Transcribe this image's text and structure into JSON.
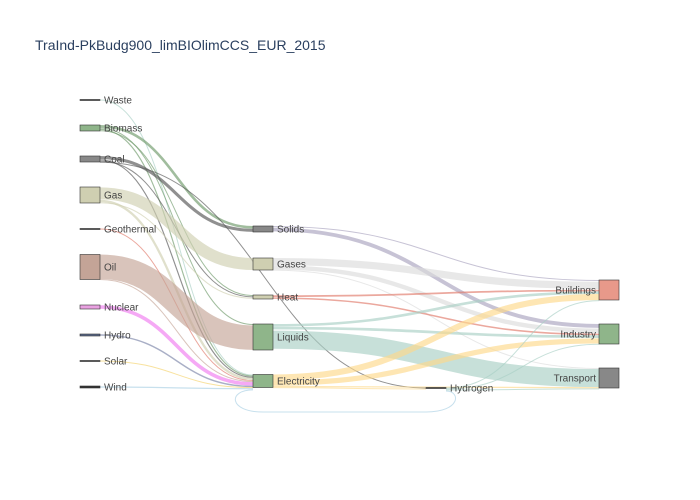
{
  "chart_data": {
    "type": "sankey",
    "title": "TraInd-PkBudg900_limBIOlimCCS_EUR_2015",
    "nodes": [
      {
        "id": "waste",
        "label": "Waste",
        "column": 0,
        "value": 0.4,
        "color": "#333333"
      },
      {
        "id": "biomass",
        "label": "Biomass",
        "column": 0,
        "value": 3,
        "color": "#8fb58a"
      },
      {
        "id": "coal",
        "label": "Coal",
        "column": 0,
        "value": 3,
        "color": "#888888"
      },
      {
        "id": "gas",
        "label": "Gas",
        "column": 0,
        "value": 10,
        "color": "#cfcfb1"
      },
      {
        "id": "geothermal",
        "label": "Geothermal",
        "column": 0,
        "value": 0.3,
        "color": "#333333"
      },
      {
        "id": "oil",
        "label": "Oil",
        "column": 0,
        "value": 15,
        "color": "#c4a497"
      },
      {
        "id": "nuclear",
        "label": "Nuclear",
        "column": 0,
        "value": 2.5,
        "color": "#e9a1e1"
      },
      {
        "id": "hydro",
        "label": "Hydro",
        "column": 0,
        "value": 1,
        "color": "#5a6a8a"
      },
      {
        "id": "solar",
        "label": "Solar",
        "column": 0,
        "value": 0.3,
        "color": "#333333"
      },
      {
        "id": "wind",
        "label": "Wind",
        "column": 0,
        "value": 0.8,
        "color": "#333333"
      },
      {
        "id": "solids",
        "label": "Solids",
        "column": 1,
        "value": 3,
        "color": "#888888"
      },
      {
        "id": "gases",
        "label": "Gases",
        "column": 1,
        "value": 8,
        "color": "#cfcfb1"
      },
      {
        "id": "heat",
        "label": "Heat",
        "column": 1,
        "value": 2,
        "color": "#cfcfb1"
      },
      {
        "id": "liquids",
        "label": "Liquids",
        "column": 1,
        "value": 15,
        "color": "#8fb58a"
      },
      {
        "id": "electricity",
        "label": "Electricity",
        "column": 1,
        "value": 8,
        "color": "#8fb58a"
      },
      {
        "id": "hydrogen",
        "label": "Hydrogen",
        "column": 2,
        "value": 0.3,
        "color": "#333333"
      },
      {
        "id": "buildings",
        "label": "Buildings",
        "column": 3,
        "value": 13,
        "color": "#e8998a"
      },
      {
        "id": "industry",
        "label": "Industry",
        "column": 3,
        "value": 13,
        "color": "#8fb58a"
      },
      {
        "id": "transport",
        "label": "Transport",
        "column": 3,
        "value": 13,
        "color": "#888888"
      }
    ],
    "links": [
      {
        "source": "waste",
        "target": "electricity",
        "value": 0.4,
        "color": "#a9d0c4"
      },
      {
        "source": "biomass",
        "target": "solids",
        "value": 1.2,
        "color": "#6f9a6a"
      },
      {
        "source": "biomass",
        "target": "liquids",
        "value": 0.4,
        "color": "#6f9a6a"
      },
      {
        "source": "biomass",
        "target": "electricity",
        "value": 0.8,
        "color": "#6f9a6a"
      },
      {
        "source": "biomass",
        "target": "heat",
        "value": 0.4,
        "color": "#6f9a6a"
      },
      {
        "source": "coal",
        "target": "solids",
        "value": 1.5,
        "color": "#555555"
      },
      {
        "source": "coal",
        "target": "electricity",
        "value": 0.8,
        "color": "#555555"
      },
      {
        "source": "coal",
        "target": "heat",
        "value": 0.4,
        "color": "#555555"
      },
      {
        "source": "coal",
        "target": "hydrogen",
        "value": 0.2,
        "color": "#555555"
      },
      {
        "source": "gas",
        "target": "gases",
        "value": 8,
        "color": "#cfcfb1"
      },
      {
        "source": "gas",
        "target": "electricity",
        "value": 1.6,
        "color": "#cfcfb1"
      },
      {
        "source": "gas",
        "target": "heat",
        "value": 0.5,
        "color": "#cfcfb1"
      },
      {
        "source": "geothermal",
        "target": "electricity",
        "value": 0.3,
        "color": "#e07a6a"
      },
      {
        "source": "oil",
        "target": "liquids",
        "value": 14.5,
        "color": "#c4a497"
      },
      {
        "source": "oil",
        "target": "electricity",
        "value": 0.3,
        "color": "#c4a497"
      },
      {
        "source": "nuclear",
        "target": "electricity",
        "value": 2.5,
        "color": "#f07bf0"
      },
      {
        "source": "hydro",
        "target": "electricity",
        "value": 1,
        "color": "#7b84a8"
      },
      {
        "source": "solar",
        "target": "electricity",
        "value": 0.3,
        "color": "#f5d36b"
      },
      {
        "source": "wind",
        "target": "electricity",
        "value": 0.8,
        "color": "#a9d0e4"
      },
      {
        "source": "solids",
        "target": "buildings",
        "value": 0.4,
        "color": "#a9a3bf"
      },
      {
        "source": "solids",
        "target": "industry",
        "value": 2,
        "color": "#a9a3bf"
      },
      {
        "source": "gases",
        "target": "buildings",
        "value": 5,
        "color": "#dcdcdc"
      },
      {
        "source": "gases",
        "target": "industry",
        "value": 3,
        "color": "#dcdcdc"
      },
      {
        "source": "gases",
        "target": "transport",
        "value": 0.3,
        "color": "#dcdcdc"
      },
      {
        "source": "heat",
        "target": "buildings",
        "value": 1,
        "color": "#e07a6a"
      },
      {
        "source": "heat",
        "target": "industry",
        "value": 0.8,
        "color": "#e07a6a"
      },
      {
        "source": "liquids",
        "target": "buildings",
        "value": 1.5,
        "color": "#a9d0c4"
      },
      {
        "source": "liquids",
        "target": "industry",
        "value": 1.5,
        "color": "#a9d0c4"
      },
      {
        "source": "liquids",
        "target": "transport",
        "value": 11.5,
        "color": "#a9d0c4"
      },
      {
        "source": "electricity",
        "target": "buildings",
        "value": 3.5,
        "color": "#fdd98a"
      },
      {
        "source": "electricity",
        "target": "industry",
        "value": 3,
        "color": "#fdd98a"
      },
      {
        "source": "electricity",
        "target": "transport",
        "value": 0.8,
        "color": "#fdd98a"
      },
      {
        "source": "electricity",
        "target": "hydrogen",
        "value": 0.2,
        "color": "#fdd98a"
      },
      {
        "source": "hydrogen",
        "target": "buildings",
        "value": 0.1,
        "color": "#a9d0c4"
      },
      {
        "source": "hydrogen",
        "target": "industry",
        "value": 0.1,
        "color": "#a9d0c4"
      },
      {
        "source": "hydrogen",
        "target": "transport",
        "value": 0.1,
        "color": "#a9d0c4"
      },
      {
        "source": "hydrogen",
        "target": "electricity",
        "value": 0.2,
        "color": "#a9d0e4"
      }
    ]
  }
}
